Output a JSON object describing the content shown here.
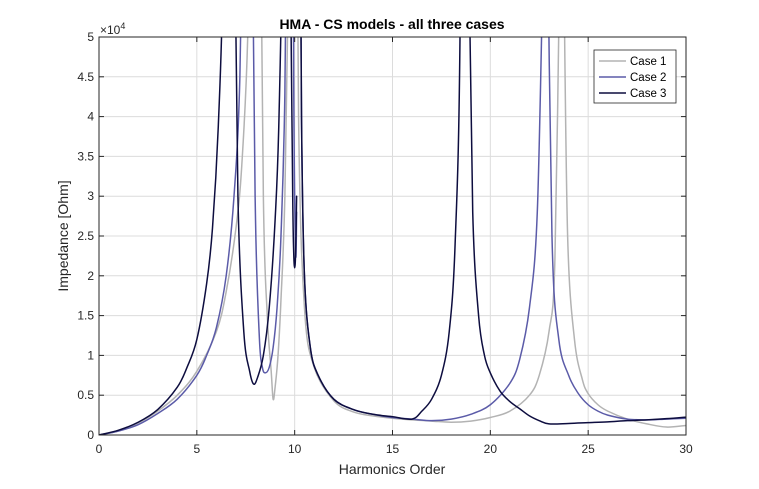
{
  "chart_data": {
    "type": "line",
    "title": "HMA - CS models - all three cases",
    "xlabel": "Harmonics Order",
    "ylabel": "Impedance [Ohm]",
    "xlim": [
      0,
      30
    ],
    "ylim": [
      0,
      5
    ],
    "y_multiplier": "×10",
    "y_multiplier_exponent": "4",
    "xticks": [
      0,
      5,
      10,
      15,
      20,
      25,
      30
    ],
    "xtick_labels": [
      "0",
      "5",
      "10",
      "15",
      "20",
      "25",
      "30"
    ],
    "yticks": [
      0,
      0.5,
      1,
      1.5,
      2,
      2.5,
      3,
      3.5,
      4,
      4.5,
      5
    ],
    "ytick_labels": [
      "0",
      "0.5",
      "1",
      "1.5",
      "2",
      "2.5",
      "3",
      "3.5",
      "4",
      "4.5",
      "5"
    ],
    "grid": true,
    "legend_position": "top-right",
    "colors": {
      "axis": "#262626",
      "grid": "#dcdcdc"
    },
    "series": [
      {
        "name": "Case 1",
        "color": "#b3b3b3",
        "segments": [
          {
            "x": [
              0,
              1,
              2,
              3,
              4,
              5,
              6,
              6.5,
              7,
              7.3,
              7.6,
              7.8,
              7.95
            ],
            "y": [
              0,
              0.05,
              0.15,
              0.3,
              0.5,
              0.8,
              1.3,
              1.8,
              2.6,
              3.4,
              5.0,
              8.0,
              12.0
            ]
          },
          {
            "x": [
              8.05,
              8.2,
              8.4,
              8.6,
              8.8,
              8.9,
              9.0,
              9.15,
              9.3,
              9.5,
              9.7,
              9.85,
              9.95
            ],
            "y": [
              15.0,
              8.0,
              3.0,
              1.5,
              0.8,
              0.45,
              0.6,
              1.0,
              1.7,
              3.0,
              6.0,
              10.0,
              14.0
            ]
          },
          {
            "x": [
              10.05,
              10.2,
              10.5,
              11,
              12,
              13,
              14,
              15,
              16,
              17,
              18,
              19,
              20,
              21,
              22,
              22.5,
              23,
              23.3,
              23.55
            ],
            "y": [
              10.0,
              4.0,
              1.6,
              0.85,
              0.43,
              0.29,
              0.24,
              0.21,
              0.19,
              0.175,
              0.16,
              0.175,
              0.22,
              0.3,
              0.5,
              0.75,
              1.3,
              2.2,
              6.0
            ]
          },
          {
            "x": [
              23.75,
              23.95,
              24.3,
              24.7,
              25,
              25.5,
              26,
              27,
              28,
              29,
              30
            ],
            "y": [
              6.0,
              2.5,
              1.2,
              0.7,
              0.52,
              0.38,
              0.3,
              0.2,
              0.14,
              0.1,
              0.12
            ]
          }
        ]
      },
      {
        "name": "Case 2",
        "color": "#5b5ba8",
        "segments": [
          {
            "x": [
              0,
              1,
              2,
              3,
              4,
              5,
              5.5,
              6,
              6.5,
              6.9,
              7.2,
              7.45,
              7.6
            ],
            "y": [
              0,
              0.05,
              0.13,
              0.27,
              0.45,
              0.75,
              1.0,
              1.35,
              2.0,
              3.0,
              4.5,
              8.0,
              13.0
            ]
          },
          {
            "x": [
              7.7,
              7.85,
              8.0,
              8.2,
              8.35,
              8.5,
              8.7,
              8.9,
              9.1,
              9.3,
              9.5,
              9.65,
              9.75
            ],
            "y": [
              14.0,
              6.0,
              2.7,
              1.2,
              0.85,
              0.78,
              0.85,
              1.1,
              1.6,
              2.5,
              4.3,
              8.0,
              14.0
            ]
          },
          {
            "x": [
              9.85,
              9.95,
              10.05,
              10.1
            ],
            "y": [
              12.0,
              4.5,
              2.3,
              2.8
            ]
          },
          {
            "x": [
              10.18,
              10.25,
              10.35,
              10.5,
              10.8,
              11.2,
              12,
              13,
              14,
              15,
              16,
              17,
              18,
              19,
              20,
              21,
              21.5,
              22,
              22.4,
              22.7
            ],
            "y": [
              14.0,
              9.0,
              4.0,
              2.0,
              1.1,
              0.75,
              0.45,
              0.32,
              0.26,
              0.22,
              0.2,
              0.18,
              0.2,
              0.26,
              0.38,
              0.65,
              0.95,
              1.6,
              2.8,
              6.0
            ]
          },
          {
            "x": [
              22.9,
              23.15,
              23.5,
              24,
              24.5,
              25,
              25.5,
              26,
              27,
              28,
              29,
              30
            ],
            "y": [
              7.0,
              2.5,
              1.2,
              0.75,
              0.52,
              0.38,
              0.3,
              0.25,
              0.2,
              0.19,
              0.2,
              0.21
            ]
          }
        ]
      },
      {
        "name": "Case 3",
        "color": "#0d0d3f",
        "segments": [
          {
            "x": [
              0,
              1,
              2,
              3,
              4,
              4.5,
              5,
              5.5,
              5.8,
              6.1,
              6.35,
              6.55,
              6.65
            ],
            "y": [
              0,
              0.06,
              0.16,
              0.32,
              0.6,
              0.85,
              1.2,
              1.9,
              2.6,
              3.9,
              6.0,
              11.0,
              14.0
            ]
          },
          {
            "x": [
              6.75,
              6.9,
              7.1,
              7.4,
              7.7,
              7.9,
              8.1,
              8.4,
              8.7,
              9.0,
              9.2,
              9.4,
              9.55
            ],
            "y": [
              14.0,
              7.0,
              3.0,
              1.3,
              0.8,
              0.64,
              0.72,
              1.0,
              1.6,
              2.7,
              4.0,
              7.0,
              14.0
            ]
          },
          {
            "x": [
              9.7,
              9.8,
              9.9,
              9.95,
              10.0,
              10.05,
              10.1
            ],
            "y": [
              10.0,
              5.5,
              3.0,
              2.3,
              2.1,
              2.3,
              3.0
            ]
          },
          {
            "x": [
              10.2,
              10.25,
              10.35,
              10.5,
              10.8,
              11.2,
              12,
              13,
              14,
              15,
              16,
              16.5,
              17,
              17.5,
              17.9,
              18.2,
              18.45,
              18.6
            ],
            "y": [
              14.0,
              8.0,
              4.0,
              2.0,
              1.1,
              0.75,
              0.45,
              0.32,
              0.26,
              0.23,
              0.2,
              0.3,
              0.45,
              0.75,
              1.3,
              2.4,
              5.0,
              12.0
            ]
          },
          {
            "x": [
              18.75,
              18.9,
              19.1,
              19.4,
              19.7,
              20,
              20.5,
              21,
              21.5,
              22,
              22.5,
              23,
              24,
              25,
              26,
              27,
              28,
              29,
              30
            ],
            "y": [
              12.0,
              6.0,
              2.8,
              1.5,
              1.0,
              0.78,
              0.55,
              0.42,
              0.33,
              0.24,
              0.18,
              0.14,
              0.145,
              0.155,
              0.165,
              0.18,
              0.19,
              0.205,
              0.225
            ]
          }
        ]
      }
    ]
  }
}
